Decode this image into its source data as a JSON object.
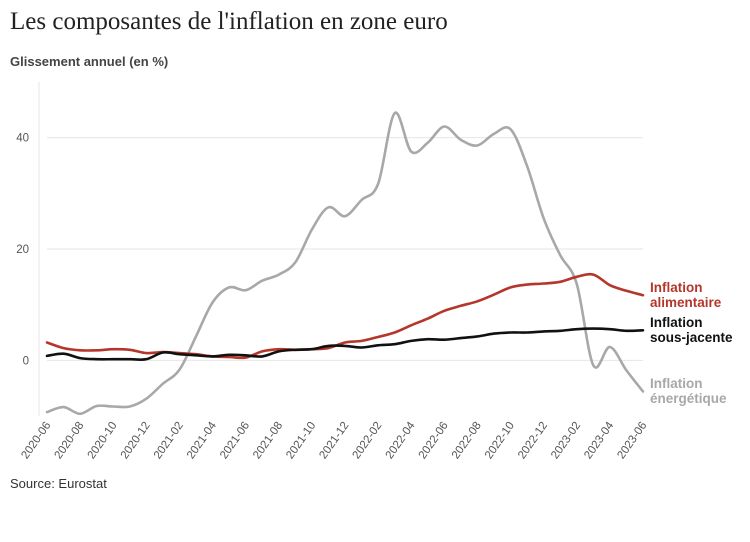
{
  "chart_data": {
    "type": "line",
    "title": "Les composantes de l'inflation en zone euro",
    "ylabel": "Glissement annuel (en %)",
    "source": "Source: Eurostat",
    "x": [
      "2020-06",
      "2020-07",
      "2020-08",
      "2020-09",
      "2020-10",
      "2020-11",
      "2020-12",
      "2021-01",
      "2021-02",
      "2021-03",
      "2021-04",
      "2021-05",
      "2021-06",
      "2021-07",
      "2021-08",
      "2021-09",
      "2021-10",
      "2021-11",
      "2021-12",
      "2022-01",
      "2022-02",
      "2022-03",
      "2022-04",
      "2022-05",
      "2022-06",
      "2022-07",
      "2022-08",
      "2022-09",
      "2022-10",
      "2022-11",
      "2022-12",
      "2023-01",
      "2023-02",
      "2023-03",
      "2023-04",
      "2023-05",
      "2023-06"
    ],
    "xticks": [
      "2020-06",
      "2020-08",
      "2020-10",
      "2020-12",
      "2021-02",
      "2021-04",
      "2021-06",
      "2021-08",
      "2021-10",
      "2021-12",
      "2022-02",
      "2022-04",
      "2022-06",
      "2022-08",
      "2022-10",
      "2022-12",
      "2023-02",
      "2023-04",
      "2023-06"
    ],
    "yticks": [
      0,
      20,
      40
    ],
    "ylim": [
      -10,
      50
    ],
    "grid": true,
    "series": [
      {
        "name": "Inflation alimentaire",
        "color": "#b5362a",
        "values": [
          3.2,
          2.2,
          1.8,
          1.8,
          2.0,
          1.9,
          1.3,
          1.5,
          1.3,
          1.1,
          0.7,
          0.6,
          0.5,
          1.6,
          2.0,
          1.9,
          2.0,
          2.2,
          3.2,
          3.5,
          4.2,
          5.0,
          6.3,
          7.5,
          8.9,
          9.8,
          10.6,
          11.8,
          13.1,
          13.6,
          13.8,
          14.1,
          15.0,
          15.4,
          13.5,
          12.5,
          11.7
        ]
      },
      {
        "name": "Inflation sous-jacente",
        "color": "#111111",
        "values": [
          0.8,
          1.2,
          0.4,
          0.2,
          0.2,
          0.2,
          0.2,
          1.4,
          1.1,
          0.9,
          0.7,
          1.0,
          0.9,
          0.7,
          1.6,
          1.9,
          2.0,
          2.6,
          2.6,
          2.3,
          2.7,
          2.9,
          3.5,
          3.8,
          3.7,
          4.0,
          4.3,
          4.8,
          5.0,
          5.0,
          5.2,
          5.3,
          5.6,
          5.7,
          5.6,
          5.3,
          5.4
        ]
      },
      {
        "name": "Inflation énergétique",
        "color": "#a8a8a8",
        "values": [
          -9.3,
          -8.4,
          -9.6,
          -8.2,
          -8.3,
          -8.3,
          -6.9,
          -4.2,
          -1.7,
          4.3,
          10.4,
          13.1,
          12.6,
          14.3,
          15.4,
          17.6,
          23.5,
          27.5,
          25.9,
          28.8,
          31.7,
          44.4,
          37.5,
          39.1,
          42.0,
          39.6,
          38.6,
          40.7,
          41.5,
          34.9,
          25.5,
          18.9,
          13.7,
          -0.9,
          2.4,
          -1.8,
          -5.6
        ]
      }
    ]
  },
  "labels": {
    "alimentaire": [
      "Inflation",
      "alimentaire"
    ],
    "sous_jacente": [
      "Inflation",
      "sous-jacente"
    ],
    "energetique": [
      "Inflation",
      "énergétique"
    ]
  }
}
